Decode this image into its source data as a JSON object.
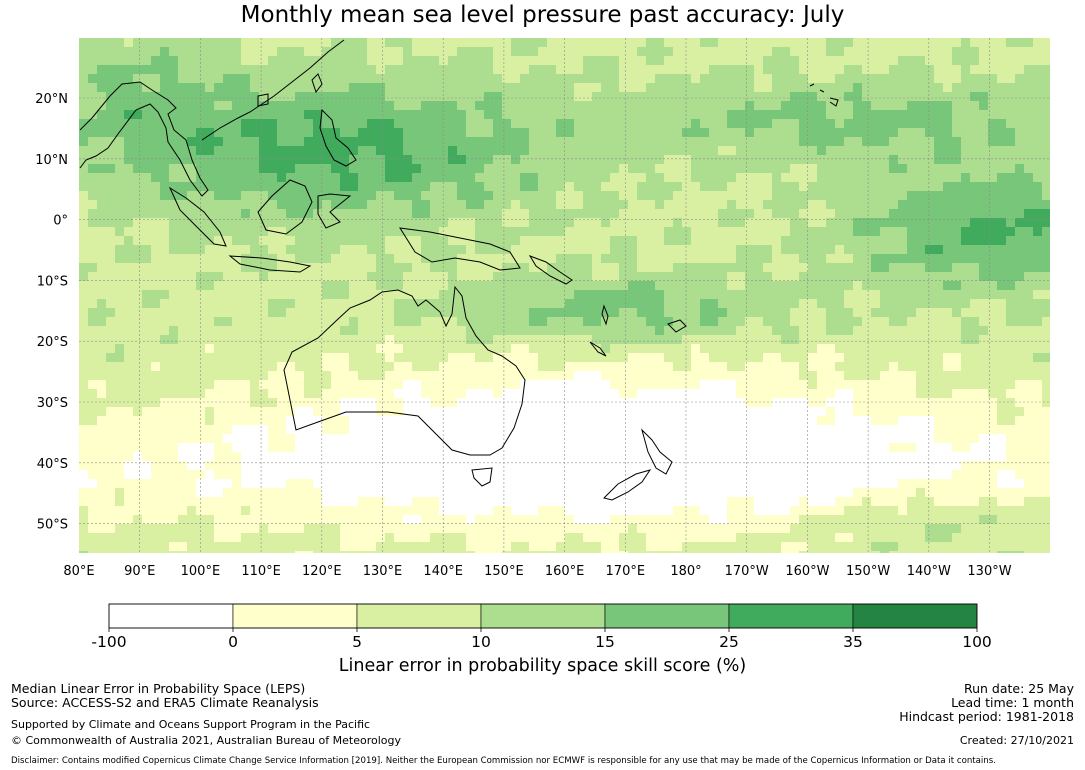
{
  "title": "Monthly mean sea level pressure past accuracy: July",
  "map": {
    "lat_ticks": [
      "20°N",
      "10°N",
      "0°",
      "10°S",
      "20°S",
      "30°S",
      "40°S",
      "50°S"
    ],
    "lon_ticks": [
      "80°E",
      "90°E",
      "100°E",
      "110°E",
      "120°E",
      "130°E",
      "140°E",
      "150°E",
      "160°E",
      "170°E",
      "180°",
      "170°W",
      "160°W",
      "150°W",
      "140°W",
      "130°W"
    ],
    "grid": true,
    "land_outline": true
  },
  "colorbar": {
    "ticks": [
      "-100",
      "0",
      "5",
      "10",
      "15",
      "25",
      "35",
      "100"
    ],
    "colors": [
      "#ffffff",
      "#ffffcc",
      "#d9f0a3",
      "#addd8e",
      "#78c679",
      "#41ab5d",
      "#238443"
    ],
    "label": "Linear error in probability space skill score (%)"
  },
  "footer": {
    "line1": "Median Linear Error in Probability Space (LEPS)",
    "line2": "Source: ACCESS-S2 and ERA5 Climate Reanalysis",
    "line3": "Supported by Climate and Oceans Support Program in the Pacific",
    "line4": "© Commonwealth of Australia 2021, Australian Bureau of Meteorology",
    "run_date": "Run date: 25 May",
    "lead_time": "Lead time: 1 month",
    "hindcast": "Hindcast period: 1981-2018",
    "created": "Created: 27/10/2021",
    "disclaimer": "Disclaimer: Contains modified Copernicus Climate Change Service Information [2019]. Neither the European Commission nor ECMWF is responsible for any use that may be made of the Copernicus Information or Data it contains."
  }
}
